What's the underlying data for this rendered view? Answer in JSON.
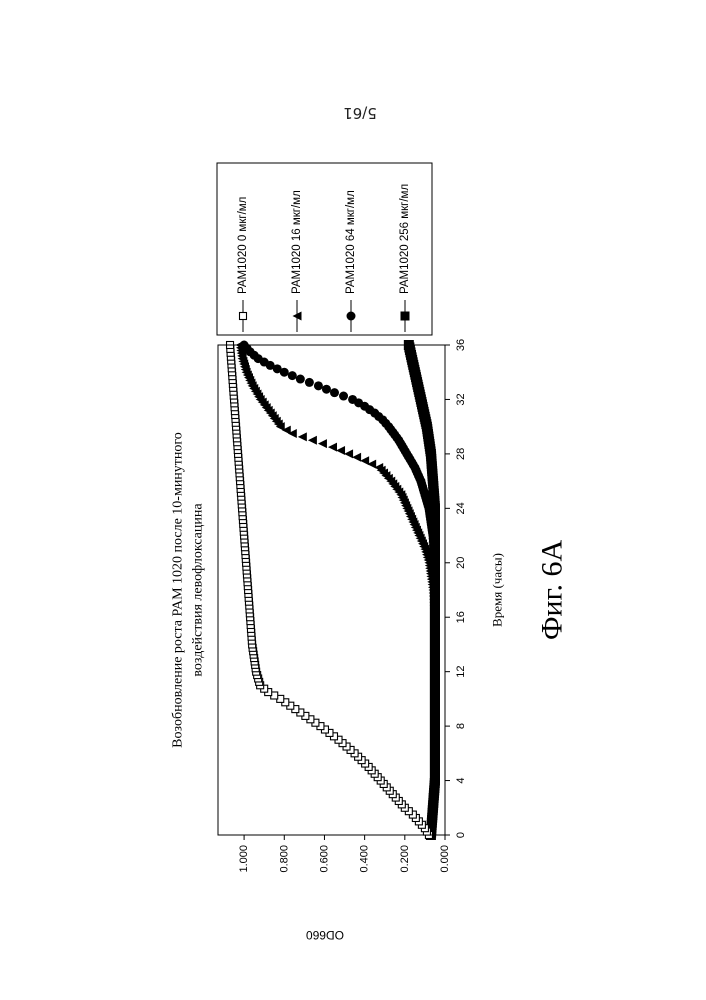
{
  "page_number": "5/61",
  "figure_label": "Фиг. 6A",
  "chart_data": {
    "type": "scatter",
    "title_lines": [
      "Возобновление роста PAM 1020 после 10-минутного",
      "воздействия левофлоксацина"
    ],
    "xlabel": "Время (часы)",
    "ylabel": "OD660",
    "xlim": [
      0,
      36
    ],
    "ylim": [
      0,
      1.1
    ],
    "x_ticks": [
      0,
      4,
      8,
      12,
      16,
      20,
      24,
      28,
      32,
      36
    ],
    "y_ticks": [
      "0.000",
      "0.200",
      "0.400",
      "0.600",
      "0.800",
      "1.000"
    ],
    "grid": false,
    "legend_position": "right",
    "series": [
      {
        "name": "PAM1020 0 мкг/мл",
        "marker": "open-square",
        "points": [
          [
            0,
            0.08
          ],
          [
            0.5,
            0.1
          ],
          [
            1,
            0.13
          ],
          [
            1.5,
            0.16
          ],
          [
            2,
            0.2
          ],
          [
            3,
            0.26
          ],
          [
            4,
            0.32
          ],
          [
            5,
            0.38
          ],
          [
            6,
            0.45
          ],
          [
            7,
            0.53
          ],
          [
            8,
            0.62
          ],
          [
            9,
            0.72
          ],
          [
            10,
            0.82
          ],
          [
            10.5,
            0.88
          ],
          [
            11,
            0.92
          ],
          [
            12,
            0.94
          ],
          [
            13,
            0.95
          ],
          [
            14,
            0.96
          ],
          [
            16,
            0.97
          ],
          [
            18,
            0.98
          ],
          [
            20,
            0.99
          ],
          [
            22,
            1.0
          ],
          [
            24,
            1.01
          ],
          [
            26,
            1.02
          ],
          [
            28,
            1.03
          ],
          [
            30,
            1.04
          ],
          [
            32,
            1.05
          ],
          [
            34,
            1.06
          ],
          [
            36,
            1.07
          ]
        ]
      },
      {
        "name": "PAM1020 16 мкг/мл",
        "marker": "filled-triangle",
        "points": [
          [
            0,
            0.07
          ],
          [
            2,
            0.06
          ],
          [
            4,
            0.05
          ],
          [
            8,
            0.05
          ],
          [
            12,
            0.05
          ],
          [
            16,
            0.05
          ],
          [
            18,
            0.06
          ],
          [
            19,
            0.07
          ],
          [
            20,
            0.08
          ],
          [
            21,
            0.1
          ],
          [
            22,
            0.13
          ],
          [
            23,
            0.16
          ],
          [
            24,
            0.19
          ],
          [
            25,
            0.22
          ],
          [
            26,
            0.27
          ],
          [
            27,
            0.33
          ],
          [
            27.5,
            0.4
          ],
          [
            28,
            0.48
          ],
          [
            28.5,
            0.56
          ],
          [
            29,
            0.66
          ],
          [
            29.5,
            0.76
          ],
          [
            30,
            0.82
          ],
          [
            31,
            0.87
          ],
          [
            32,
            0.92
          ],
          [
            33,
            0.96
          ],
          [
            34,
            0.99
          ],
          [
            35,
            1.01
          ],
          [
            36,
            1.02
          ]
        ]
      },
      {
        "name": "PAM1020 64 мкг/мл",
        "marker": "filled-circle",
        "points": [
          [
            0,
            0.07
          ],
          [
            2,
            0.06
          ],
          [
            4,
            0.05
          ],
          [
            8,
            0.05
          ],
          [
            12,
            0.05
          ],
          [
            16,
            0.05
          ],
          [
            20,
            0.05
          ],
          [
            22,
            0.06
          ],
          [
            23,
            0.07
          ],
          [
            24,
            0.08
          ],
          [
            25,
            0.1
          ],
          [
            26,
            0.12
          ],
          [
            27,
            0.15
          ],
          [
            28,
            0.19
          ],
          [
            29,
            0.23
          ],
          [
            30,
            0.28
          ],
          [
            30.5,
            0.31
          ],
          [
            31,
            0.35
          ],
          [
            31.5,
            0.4
          ],
          [
            32,
            0.46
          ],
          [
            32.5,
            0.55
          ],
          [
            33,
            0.63
          ],
          [
            33.5,
            0.72
          ],
          [
            34,
            0.8
          ],
          [
            34.5,
            0.87
          ],
          [
            35,
            0.93
          ],
          [
            35.5,
            0.97
          ],
          [
            36,
            1.0
          ]
        ]
      },
      {
        "name": "PAM1020 256 мкг/мл",
        "marker": "filled-square",
        "points": [
          [
            0,
            0.07
          ],
          [
            2,
            0.06
          ],
          [
            4,
            0.05
          ],
          [
            8,
            0.05
          ],
          [
            12,
            0.05
          ],
          [
            16,
            0.05
          ],
          [
            20,
            0.05
          ],
          [
            24,
            0.05
          ],
          [
            26,
            0.06
          ],
          [
            28,
            0.07
          ],
          [
            30,
            0.09
          ],
          [
            32,
            0.12
          ],
          [
            34,
            0.15
          ],
          [
            36,
            0.18
          ]
        ]
      }
    ]
  }
}
